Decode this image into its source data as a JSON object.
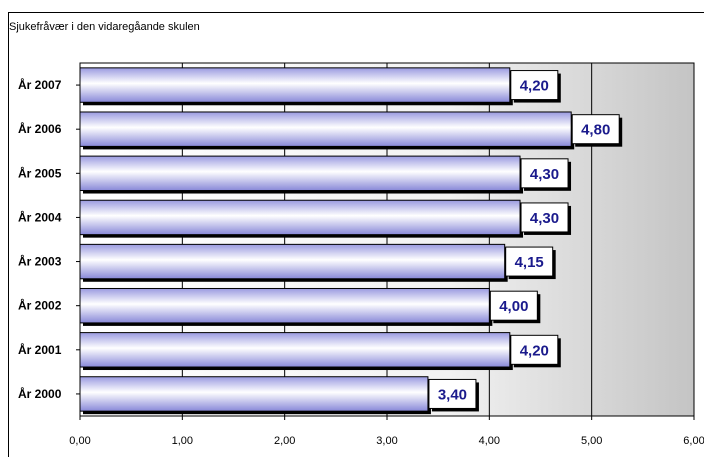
{
  "chart_data": {
    "type": "bar",
    "orientation": "horizontal",
    "title": "Sjukefråvær i den vidaregåande skulen",
    "categories": [
      "År 2007",
      "År 2006",
      "År 2005",
      "År 2004",
      "År 2003",
      "År 2002",
      "År 2001",
      "År 2000"
    ],
    "values": [
      4.2,
      4.8,
      4.3,
      4.3,
      4.15,
      4.0,
      4.2,
      3.4
    ],
    "data_labels": [
      "4,20",
      "4,80",
      "4,30",
      "4,30",
      "4,15",
      "4,00",
      "4,20",
      "3,40"
    ],
    "xlim": [
      0,
      6
    ],
    "xticks": [
      0,
      1,
      2,
      3,
      4,
      5,
      6
    ],
    "xtick_labels": [
      "0,00",
      "1,00",
      "2,00",
      "3,00",
      "4,00",
      "5,00",
      "6,00"
    ],
    "grid": "vertical",
    "bar_color": "#c8c8f0",
    "label_color": "#1a1a8c"
  }
}
